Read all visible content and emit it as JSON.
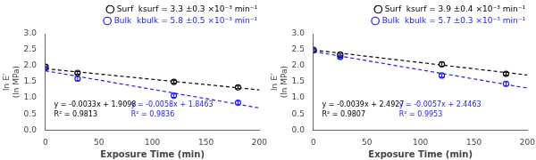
{
  "chart_data": [
    {
      "type": "scatter",
      "xlabel": "Exposure Time (min)",
      "ylabel": "ln E’\n(ln MPa)",
      "xlim": [
        0,
        200
      ],
      "ylim": [
        0,
        3
      ],
      "xticks": [
        0,
        50,
        100,
        150,
        200
      ],
      "yticks": [
        {
          "value": 0,
          "label": "0.0"
        },
        0.5,
        {
          "value": 1.0,
          "label": "1.0"
        },
        1.5,
        {
          "value": 2.0,
          "label": "2.0"
        },
        2.5,
        {
          "value": 3.0,
          "label": "3.0"
        }
      ],
      "grid": false,
      "legend": "upper right",
      "series": [
        {
          "name": "Surf  ksurf = 3.3 ±0.3 ×10⁻³ min⁻¹",
          "type": "scatter",
          "marker": "o",
          "color": "#000000",
          "x": [
            0,
            30,
            120,
            180
          ],
          "values": [
            1.97,
            1.78,
            1.5,
            1.33
          ],
          "errors": [
            0.03,
            0.04,
            0.04,
            0.04
          ]
        },
        {
          "name": "Bulk  kbulk = 5.8 ±0.5 ×10⁻³ min⁻¹",
          "type": "scatter",
          "marker": "o",
          "color": "#1a1aff",
          "x": [
            0,
            30,
            120,
            180
          ],
          "values": [
            1.93,
            1.6,
            1.07,
            0.85
          ],
          "errors": [
            0.04,
            0.06,
            0.05,
            0.05
          ]
        },
        {
          "type": "line",
          "line_style": "dashed",
          "color": "#000000",
          "x": [
            0,
            200
          ],
          "values": [
            1.9098,
            1.2498
          ]
        },
        {
          "type": "line",
          "line_style": "dashed",
          "color": "#1a1aff",
          "x": [
            0,
            200
          ],
          "values": [
            1.8463,
            0.6863
          ]
        }
      ],
      "annotations": [
        {
          "text": [
            "y = -0.0033x + 1.9098",
            "R² = 0.9813"
          ],
          "color": "#000000"
        },
        {
          "text": [
            "y = -0.0058x + 1.8463",
            "R² = 0.9836"
          ],
          "color": "#1a1aff"
        }
      ]
    },
    {
      "type": "scatter",
      "xlabel": "Exposure Time (min)",
      "ylabel": "ln E’\n(ln MPa)",
      "xlim": [
        0,
        200
      ],
      "ylim": [
        0,
        3
      ],
      "xticks": [
        0,
        50,
        100,
        150,
        200
      ],
      "yticks": [
        {
          "value": 0,
          "label": "0.0"
        },
        0.5,
        {
          "value": 1.0,
          "label": "1.0"
        },
        1.5,
        {
          "value": 2.0,
          "label": "2.0"
        },
        2.5,
        {
          "value": 3.0,
          "label": "3.0"
        }
      ],
      "grid": false,
      "legend": "upper right",
      "series": [
        {
          "name": "Surf  ksurf = 3.9 ±0.4 ×10⁻³ min⁻¹",
          "type": "scatter",
          "marker": "o",
          "color": "#000000",
          "x": [
            0,
            25,
            120,
            180
          ],
          "values": [
            2.5,
            2.35,
            2.05,
            1.75
          ],
          "errors": [
            0.03,
            0.04,
            0.06,
            0.04
          ]
        },
        {
          "name": "Bulk  kbulk = 5.7 ±0.3 ×10⁻³ min⁻¹",
          "type": "scatter",
          "marker": "o",
          "color": "#1a1aff",
          "x": [
            0,
            25,
            120,
            180
          ],
          "values": [
            2.48,
            2.28,
            1.7,
            1.44
          ],
          "errors": [
            0.04,
            0.05,
            0.05,
            0.06
          ]
        },
        {
          "type": "line",
          "line_style": "dashed",
          "color": "#000000",
          "x": [
            0,
            200
          ],
          "values": [
            2.4927,
            1.7127
          ]
        },
        {
          "type": "line",
          "line_style": "dashed",
          "color": "#1a1aff",
          "x": [
            0,
            200
          ],
          "values": [
            2.4463,
            1.3063
          ]
        }
      ],
      "annotations": [
        {
          "text": [
            "y = -0.0039x + 2.4927",
            "R² = 0.9807"
          ],
          "color": "#000000"
        },
        {
          "text": [
            "y = -0.0057x + 2.4463",
            "R² = 0.9953"
          ],
          "color": "#1a1aff"
        }
      ]
    }
  ]
}
